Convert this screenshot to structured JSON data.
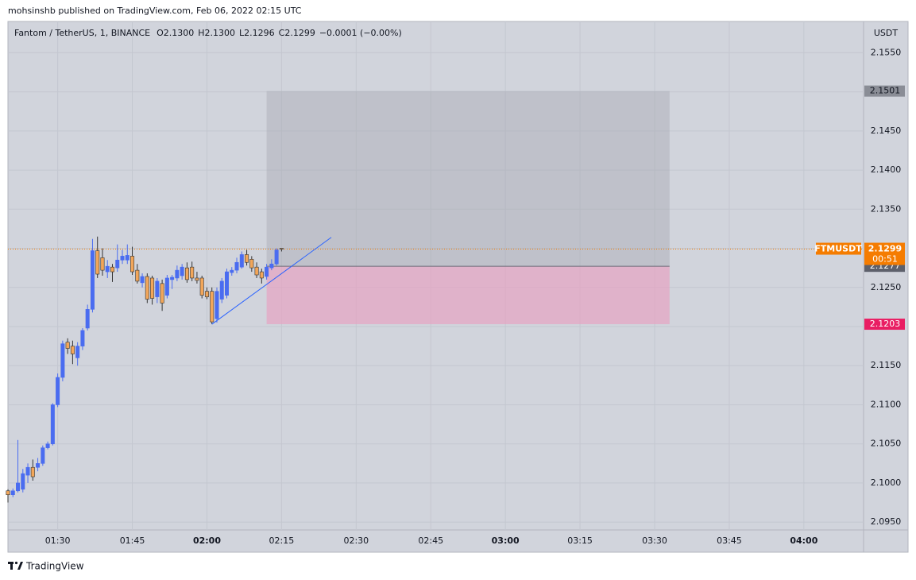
{
  "header": {
    "publisher": "mohsinshb published on TradingView.com, Feb 06, 2022 02:15 UTC"
  },
  "footer": {
    "brand": "TradingView"
  },
  "chart_data": {
    "type": "candlestick",
    "title": "Fantom / TetherUS, 1, BINANCE",
    "ohlc_labels": [
      "O2.1300",
      "H2.1300",
      "L2.1296",
      "C2.1299",
      "−0.0001 (−0.00%)"
    ],
    "y_axis_label": "USDT",
    "x": [
      "01:20",
      "01:21",
      "01:22",
      "01:23",
      "01:24",
      "01:25",
      "01:26",
      "01:27",
      "01:28",
      "01:29",
      "01:30",
      "01:31",
      "01:32",
      "01:33",
      "01:34",
      "01:35",
      "01:36",
      "01:37",
      "01:38",
      "01:39",
      "01:40",
      "01:41",
      "01:42",
      "01:43",
      "01:44",
      "01:45",
      "01:46",
      "01:47",
      "01:48",
      "01:49",
      "01:50",
      "01:51",
      "01:52",
      "01:53",
      "01:54",
      "01:55",
      "01:56",
      "01:57",
      "01:58",
      "01:59",
      "02:00",
      "02:01",
      "02:02",
      "02:03",
      "02:04",
      "02:05",
      "02:06",
      "02:07",
      "02:08",
      "02:09",
      "02:10",
      "02:11",
      "02:12",
      "02:13",
      "02:14",
      "02:15"
    ],
    "open": [
      2.099,
      2.0985,
      2.099,
      2.0992,
      2.101,
      2.102,
      2.102,
      2.1025,
      2.1045,
      2.105,
      2.11,
      2.1135,
      2.118,
      2.1175,
      2.116,
      2.1175,
      2.1198,
      2.1222,
      2.1297,
      2.1288,
      2.127,
      2.1276,
      2.1275,
      2.1285,
      2.1285,
      2.129,
      2.1272,
      2.1256,
      2.1264,
      2.1262,
      2.1238,
      2.1255,
      2.124,
      2.126,
      2.1262,
      2.1265,
      2.1275,
      2.1276,
      2.1262,
      2.1262,
      2.1245,
      2.1245,
      2.121,
      2.1235,
      2.124,
      2.1269,
      2.1272,
      2.1276,
      2.1292,
      2.1286,
      2.1276,
      2.127,
      2.1264,
      2.1275,
      2.128,
      2.13
    ],
    "high": [
      2.0992,
      2.0993,
      2.1055,
      2.1018,
      2.1025,
      2.103,
      2.1032,
      2.1048,
      2.1053,
      2.1102,
      2.114,
      2.1182,
      2.1185,
      2.1182,
      2.118,
      2.1198,
      2.1228,
      2.1312,
      2.1315,
      2.13,
      2.1285,
      2.128,
      2.1305,
      2.1298,
      2.1305,
      2.1302,
      2.128,
      2.1268,
      2.1268,
      2.1265,
      2.1262,
      2.126,
      2.1266,
      2.1266,
      2.1278,
      2.128,
      2.1282,
      2.1283,
      2.127,
      2.1265,
      2.125,
      2.125,
      2.125,
      2.1262,
      2.1274,
      2.1276,
      2.1288,
      2.1296,
      2.1298,
      2.129,
      2.1282,
      2.1274,
      2.128,
      2.1286,
      2.13,
      2.13
    ],
    "low": [
      2.0975,
      2.0982,
      2.0988,
      2.0988,
      2.1,
      2.1003,
      2.1015,
      2.1022,
      2.1043,
      2.1048,
      2.1097,
      2.113,
      2.1165,
      2.1152,
      2.115,
      2.117,
      2.1195,
      2.1218,
      2.1262,
      2.1265,
      2.1262,
      2.1257,
      2.127,
      2.128,
      2.128,
      2.1266,
      2.1255,
      2.125,
      2.123,
      2.1228,
      2.123,
      2.122,
      2.1236,
      2.1248,
      2.1258,
      2.126,
      2.1256,
      2.1258,
      2.1255,
      2.1236,
      2.1235,
      2.1203,
      2.1205,
      2.123,
      2.1236,
      2.1265,
      2.1268,
      2.1274,
      2.1278,
      2.127,
      2.1262,
      2.1255,
      2.126,
      2.1272,
      2.1278,
      2.1296
    ],
    "close": [
      2.0985,
      2.099,
      2.1,
      2.1012,
      2.102,
      2.1008,
      2.1025,
      2.1045,
      2.105,
      2.11,
      2.1135,
      2.1178,
      2.1172,
      2.1165,
      2.1175,
      2.1195,
      2.1222,
      2.1297,
      2.1267,
      2.1272,
      2.1277,
      2.127,
      2.1285,
      2.129,
      2.1291,
      2.127,
      2.1258,
      2.1264,
      2.1235,
      2.1236,
      2.1258,
      2.123,
      2.1262,
      2.1263,
      2.1272,
      2.1276,
      2.126,
      2.1262,
      2.1259,
      2.124,
      2.1238,
      2.1206,
      2.1245,
      2.1258,
      2.127,
      2.1272,
      2.1282,
      2.1292,
      2.1282,
      2.1275,
      2.1266,
      2.1262,
      2.1276,
      2.128,
      2.1298,
      2.1299
    ],
    "up_color": "#4a6cf0",
    "down_color": "#f2a65a",
    "xlim": [
      "01:20",
      "04:12"
    ],
    "xticks": [
      "01:30",
      "01:45",
      "02:00",
      "02:15",
      "02:30",
      "02:45",
      "03:00",
      "03:15",
      "03:30",
      "03:45",
      "04:00"
    ],
    "ylim": [
      2.094,
      2.159
    ],
    "yticks": [
      {
        "value": 2.095,
        "label": "2.0950"
      },
      {
        "value": 2.1,
        "label": "2.1000"
      },
      {
        "value": 2.105,
        "label": "2.1050"
      },
      {
        "value": 2.11,
        "label": "2.1100"
      },
      {
        "value": 2.115,
        "label": "2.1150"
      },
      {
        "value": 2.12,
        "label": "2.1200"
      },
      {
        "value": 2.125,
        "label": "2.1250"
      },
      {
        "value": 2.13,
        "label": "2.1300"
      },
      {
        "value": 2.135,
        "label": "2.1350"
      },
      {
        "value": 2.14,
        "label": "2.1400"
      },
      {
        "value": 2.145,
        "label": "2.1450"
      },
      {
        "value": 2.15,
        "label": "2.1500"
      },
      {
        "value": 2.155,
        "label": "2.1550"
      }
    ],
    "grid": true,
    "symbol": "FTMUSDT",
    "last_price": 2.1299,
    "countdown": "00:51",
    "position": {
      "start": "02:12",
      "end": "03:33",
      "entry": 2.1277,
      "target": 2.1501,
      "stop": 2.1203
    },
    "trendline": {
      "x": [
        "02:01",
        "02:25"
      ],
      "y": [
        2.1203,
        2.1314
      ]
    }
  }
}
